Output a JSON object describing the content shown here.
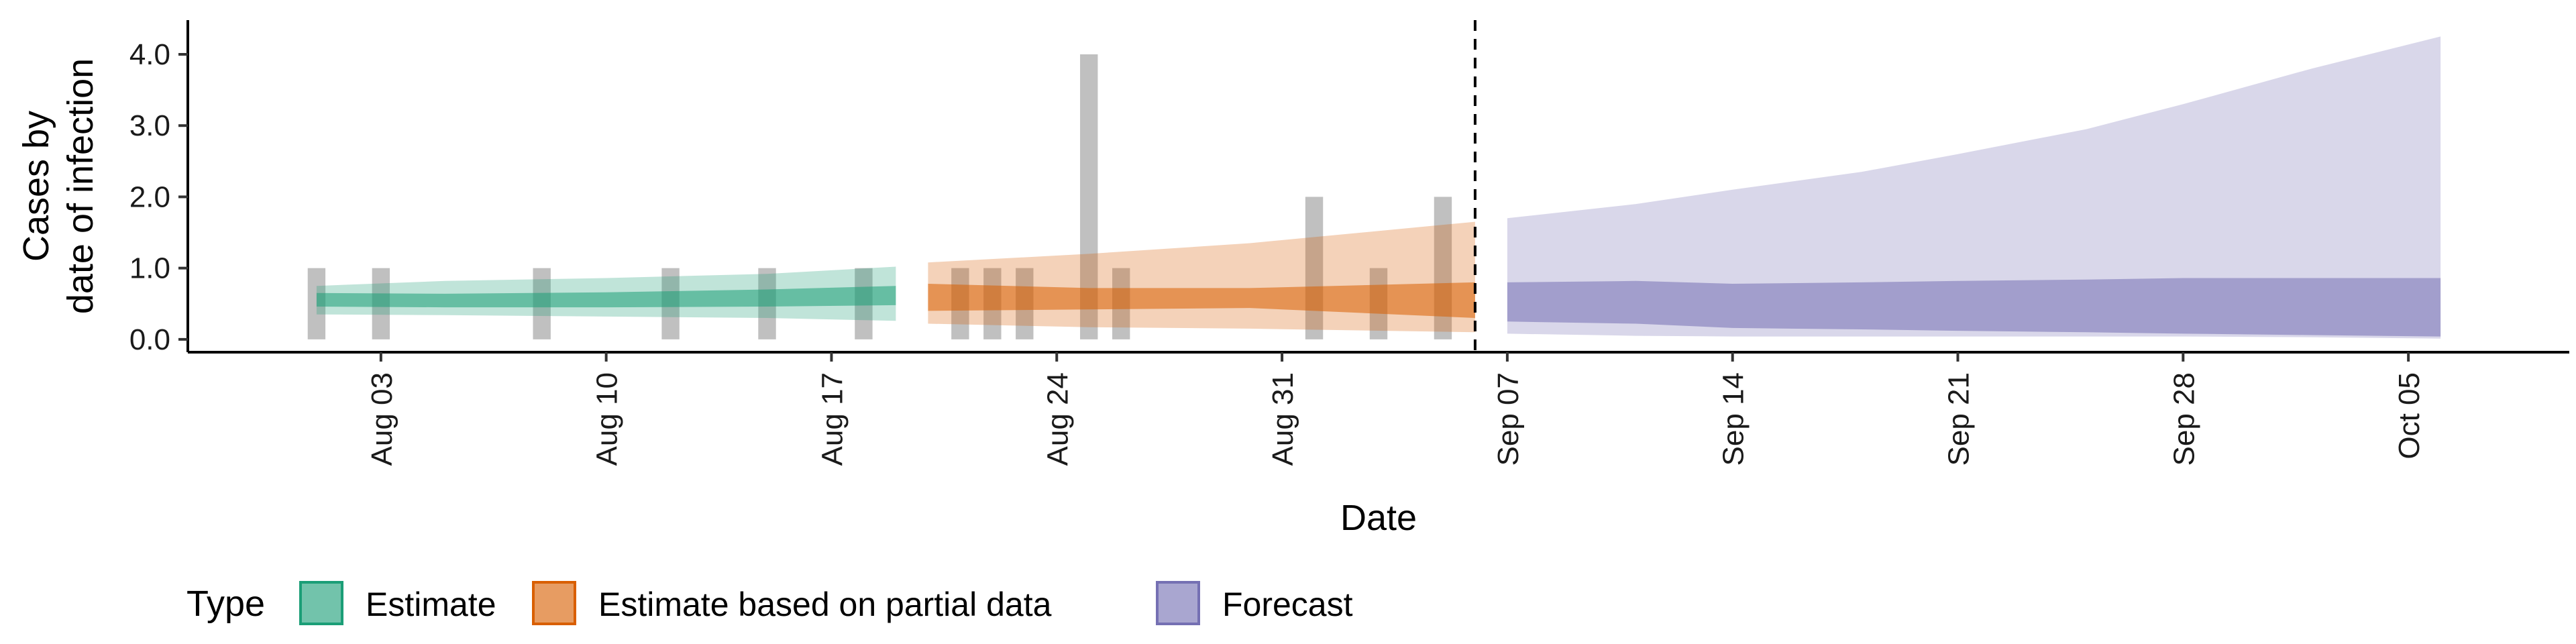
{
  "chart_data": {
    "type": "area",
    "xlabel": "Date",
    "ylabel_lines": [
      "Cases by",
      "date of infection"
    ],
    "xlim": [
      "2020-07-28",
      "2020-10-10"
    ],
    "ylim": [
      -0.18,
      4.48
    ],
    "y_ticks": [
      0.0,
      1.0,
      2.0,
      3.0,
      4.0
    ],
    "y_tick_labels": [
      "0.0",
      "1.0",
      "2.0",
      "3.0",
      "4.0"
    ],
    "x_ticks": [
      "2020-08-03",
      "2020-08-10",
      "2020-08-17",
      "2020-08-24",
      "2020-08-31",
      "2020-09-07",
      "2020-09-14",
      "2020-09-21",
      "2020-09-28",
      "2020-10-05"
    ],
    "x_tick_labels": [
      "Aug 03",
      "Aug 10",
      "Aug 17",
      "Aug 24",
      "Aug 31",
      "Sep 07",
      "Sep 14",
      "Sep 21",
      "Sep 28",
      "Oct 05"
    ],
    "forecast_start_line": "2020-09-06",
    "observed_cases": [
      {
        "date": "2020-08-01",
        "value": 1
      },
      {
        "date": "2020-08-03",
        "value": 1
      },
      {
        "date": "2020-08-08",
        "value": 1
      },
      {
        "date": "2020-08-12",
        "value": 1
      },
      {
        "date": "2020-08-15",
        "value": 1
      },
      {
        "date": "2020-08-18",
        "value": 1
      },
      {
        "date": "2020-08-21",
        "value": 1
      },
      {
        "date": "2020-08-22",
        "value": 1
      },
      {
        "date": "2020-08-23",
        "value": 1
      },
      {
        "date": "2020-08-25",
        "value": 4
      },
      {
        "date": "2020-08-26",
        "value": 1
      },
      {
        "date": "2020-09-01",
        "value": 2
      },
      {
        "date": "2020-09-03",
        "value": 1
      },
      {
        "date": "2020-09-05",
        "value": 2
      }
    ],
    "series": [
      {
        "name": "Estimate",
        "color": "#1b9e77",
        "dates": [
          "2020-08-01",
          "2020-08-05",
          "2020-08-10",
          "2020-08-15",
          "2020-08-19"
        ],
        "outer_upper": [
          0.75,
          0.82,
          0.86,
          0.92,
          1.02
        ],
        "outer_lower": [
          0.35,
          0.34,
          0.32,
          0.3,
          0.26
        ],
        "inner_upper": [
          0.65,
          0.64,
          0.66,
          0.7,
          0.75
        ],
        "inner_lower": [
          0.46,
          0.45,
          0.45,
          0.46,
          0.48
        ]
      },
      {
        "name": "Estimate based on partial data",
        "color": "#d95f02",
        "dates": [
          "2020-08-20",
          "2020-08-25",
          "2020-08-30",
          "2020-09-06"
        ],
        "outer_upper": [
          1.08,
          1.2,
          1.35,
          1.65
        ],
        "outer_lower": [
          0.22,
          0.17,
          0.15,
          0.1
        ],
        "inner_upper": [
          0.78,
          0.72,
          0.72,
          0.8
        ],
        "inner_lower": [
          0.4,
          0.42,
          0.44,
          0.3
        ]
      },
      {
        "name": "Forecast",
        "color": "#7570b3",
        "dates": [
          "2020-09-07",
          "2020-09-11",
          "2020-09-14",
          "2020-09-18",
          "2020-09-21",
          "2020-09-25",
          "2020-09-28",
          "2020-10-02",
          "2020-10-06"
        ],
        "outer_upper": [
          1.7,
          1.9,
          2.1,
          2.35,
          2.6,
          2.95,
          3.3,
          3.8,
          4.25
        ],
        "outer_lower": [
          0.08,
          0.05,
          0.04,
          0.04,
          0.04,
          0.04,
          0.04,
          0.03,
          0.01
        ],
        "inner_upper": [
          0.8,
          0.82,
          0.78,
          0.8,
          0.82,
          0.84,
          0.86,
          0.86,
          0.86
        ],
        "inner_lower": [
          0.25,
          0.22,
          0.16,
          0.14,
          0.12,
          0.1,
          0.08,
          0.06,
          0.04
        ]
      }
    ],
    "legend": {
      "title": "Type",
      "position": "bottom",
      "items": [
        {
          "label": "Estimate",
          "color": "#1b9e77"
        },
        {
          "label": "Estimate based on partial data",
          "color": "#d95f02"
        },
        {
          "label": "Forecast",
          "color": "#7570b3"
        }
      ]
    },
    "grid": false
  }
}
